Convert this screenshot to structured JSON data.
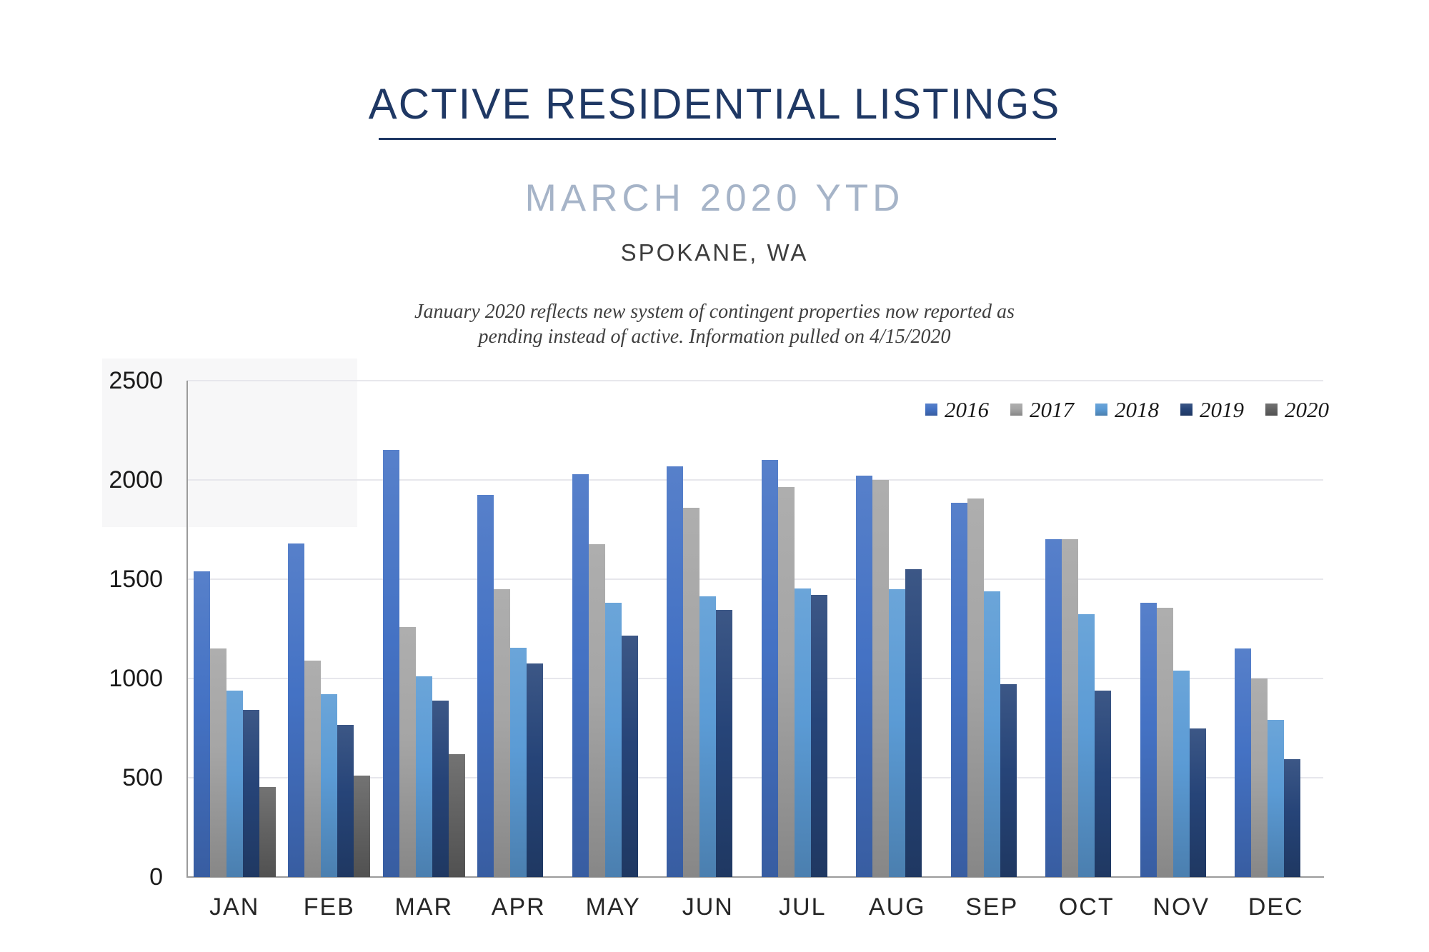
{
  "header": {
    "title": "ACTIVE RESIDENTIAL LISTINGS",
    "subtitle": "MARCH 2020 YTD",
    "location": "SPOKANE, WA",
    "note_line1": "January 2020 reflects new system of contingent properties now reported as",
    "note_line2": "pending instead of active.  Information pulled on 4/15/2020"
  },
  "chart_data": {
    "type": "bar",
    "title": "Active Residential Listings by month",
    "xlabel": "",
    "ylabel": "",
    "ylim": [
      0,
      2500
    ],
    "ytick_interval": 500,
    "yticks": [
      "0",
      "500",
      "1000",
      "1500",
      "2000",
      "2500"
    ],
    "grid": true,
    "legend_position": "top-right",
    "categories": [
      "JAN",
      "FEB",
      "MAR",
      "APR",
      "MAY",
      "JUN",
      "JUL",
      "AUG",
      "SEP",
      "OCT",
      "NOV",
      "DEC"
    ],
    "series": [
      {
        "name": "2016",
        "color": "#4472C4",
        "values": [
          1540,
          1680,
          2150,
          1925,
          2030,
          2070,
          2100,
          2020,
          1885,
          1700,
          1380,
          1150
        ]
      },
      {
        "name": "2017",
        "color": "#A5A5A5",
        "values": [
          1150,
          1090,
          1260,
          1450,
          1675,
          1860,
          1965,
          2000,
          1905,
          1700,
          1355,
          1000
        ]
      },
      {
        "name": "2018",
        "color": "#5B9BD5",
        "values": [
          940,
          920,
          1010,
          1155,
          1380,
          1415,
          1455,
          1450,
          1440,
          1325,
          1040,
          790
        ]
      },
      {
        "name": "2019",
        "color": "#264478",
        "values": [
          840,
          765,
          890,
          1075,
          1215,
          1345,
          1420,
          1550,
          970,
          940,
          750,
          595
        ]
      },
      {
        "name": "2020",
        "color": "#636363",
        "values": [
          455,
          510,
          620,
          null,
          null,
          null,
          null,
          null,
          null,
          null,
          null,
          null
        ]
      }
    ]
  },
  "colors": {
    "title_navy": "#1F3864",
    "subtitle_gray_blue": "#A6B4C8",
    "axis_gray": "#9B9B9B",
    "gridline_gray": "#E7E7EC"
  }
}
